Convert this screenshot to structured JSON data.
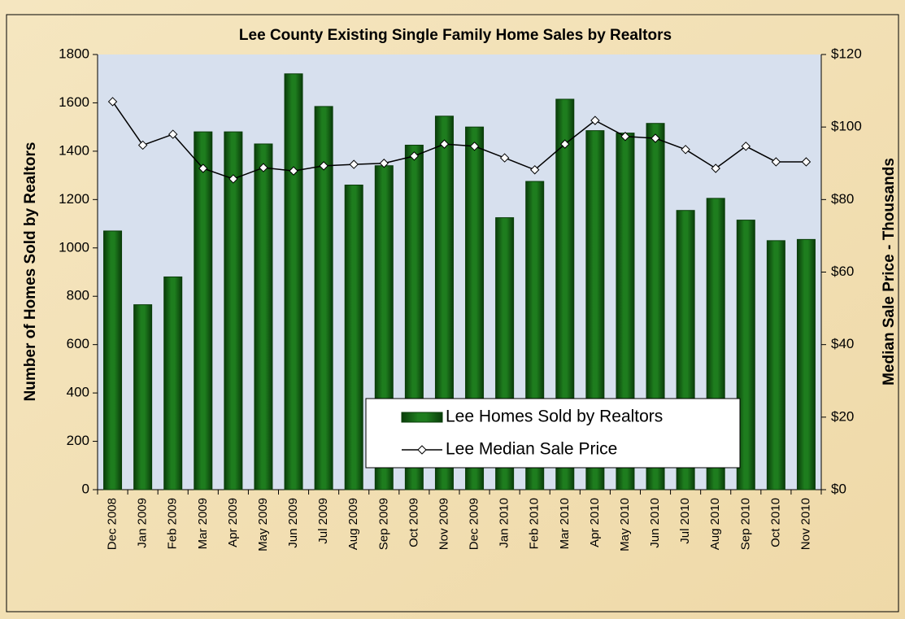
{
  "chart_data": {
    "type": "bar_line",
    "title": "Lee County Existing Single Family Home Sales by Realtors",
    "y_label": "Number of Homes  Sold by Realtors",
    "y2_label": "Median Sale Price - Thousands",
    "categories": [
      "Dec 2008",
      "Jan 2009",
      "Feb 2009",
      "Mar 2009",
      "Apr 2009",
      "May 2009",
      "Jun 2009",
      "Jul 2009",
      "Aug 2009",
      "Sep 2009",
      "Oct 2009",
      "Nov 2009",
      "Dec 2009",
      "Jan 2010",
      "Feb 2010",
      "Mar 2010",
      "Apr 2010",
      "May 2010",
      "Jun 2010",
      "Jul 2010",
      "Aug 2010",
      "Sep 2010",
      "Oct 2010",
      "Nov 2010"
    ],
    "series": [
      {
        "name": "Lee Homes Sold by Realtors",
        "type": "bar",
        "color": "#1e7d1e",
        "values": [
          1070,
          765,
          880,
          1480,
          1480,
          1430,
          1720,
          1585,
          1260,
          1340,
          1425,
          1545,
          1500,
          1125,
          1275,
          1615,
          1485,
          1475,
          1515,
          1155,
          1205,
          1115,
          1030,
          1035
        ]
      },
      {
        "name": "Lee Median Sale Price",
        "type": "line",
        "axis": "y2",
        "color": "#000000",
        "values": [
          107,
          95,
          98,
          88.6,
          85.7,
          88.8,
          87.9,
          89.3,
          89.7,
          90,
          92,
          95.3,
          94.7,
          91.5,
          88.2,
          95.3,
          101.8,
          97.4,
          96.9,
          93.8,
          88.6,
          94.7,
          90.4,
          90.4
        ]
      }
    ],
    "ylim": [
      0,
      1800
    ],
    "yticks": [
      0,
      200,
      400,
      600,
      800,
      1000,
      1200,
      1400,
      1600,
      1800
    ],
    "y2lim": [
      0,
      120
    ],
    "y2ticks": [
      {
        "value": 0,
        "label": "$0"
      },
      {
        "value": 20,
        "label": "$20"
      },
      {
        "value": 40,
        "label": "$40"
      },
      {
        "value": 60,
        "label": "$60"
      },
      {
        "value": 80,
        "label": "$80"
      },
      {
        "value": 100,
        "label": "$100"
      },
      {
        "value": 120,
        "label": "$120"
      }
    ],
    "grid": false
  }
}
